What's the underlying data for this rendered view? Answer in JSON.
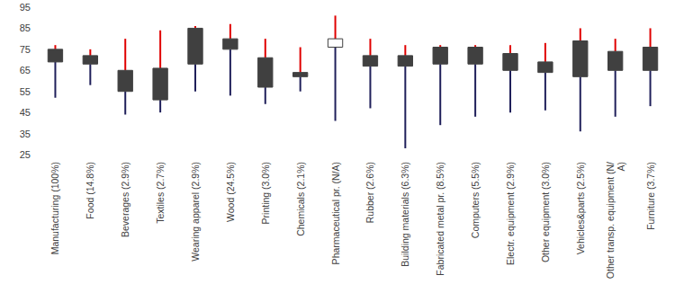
{
  "chart_data": {
    "type": "boxrange",
    "categories": [
      "Manufacturing (100%)",
      "Food (14.8%)",
      "Beverages (2.9%)",
      "Textiles (2.7%)",
      "Wearing apparel (2.9%)",
      "Wood (24.5%)",
      "Printing (3.0%)",
      "Chemicals (2.1%)",
      "Pharmaceutical pr. (N/A)",
      "Rubber (2.6%)",
      "Building materials (6.3%)",
      "Fabricated metal pr. (8.5%)",
      "Computers (5.5%)",
      "Electr. equipment (2.9%)",
      "Other equipment (3.0%)",
      "Vehicles&parts (2.5%)",
      "Other transp. equipment (N/A)",
      "Furniture (3.7%)"
    ],
    "low": [
      52,
      58,
      44,
      45,
      55,
      53,
      49,
      55,
      41,
      47,
      28,
      39,
      43,
      45,
      46,
      36,
      43,
      48
    ],
    "box_low": [
      69,
      68,
      55,
      51,
      68,
      75,
      57,
      62,
      76,
      67,
      67,
      68,
      68,
      65,
      64,
      62,
      65,
      65
    ],
    "box_high": [
      75,
      72,
      65,
      66,
      85,
      80,
      71,
      64,
      80,
      72,
      72,
      76,
      76,
      73,
      69,
      79,
      74,
      76
    ],
    "high": [
      77,
      75,
      80,
      84,
      86,
      87,
      80,
      76,
      91,
      80,
      77,
      77,
      77,
      77,
      78,
      85,
      80,
      85
    ],
    "colors": [
      "#404040",
      "#404040",
      "#404040",
      "#404040",
      "#404040",
      "#404040",
      "#404040",
      "#404040",
      "#ffffff",
      "#404040",
      "#404040",
      "#404040",
      "#404040",
      "#404040",
      "#404040",
      "#404040",
      "#404040",
      "#404040"
    ],
    "ylim": [
      25,
      95
    ],
    "yticks": [
      25,
      35,
      45,
      55,
      65,
      75,
      85,
      95
    ],
    "grid": false
  }
}
